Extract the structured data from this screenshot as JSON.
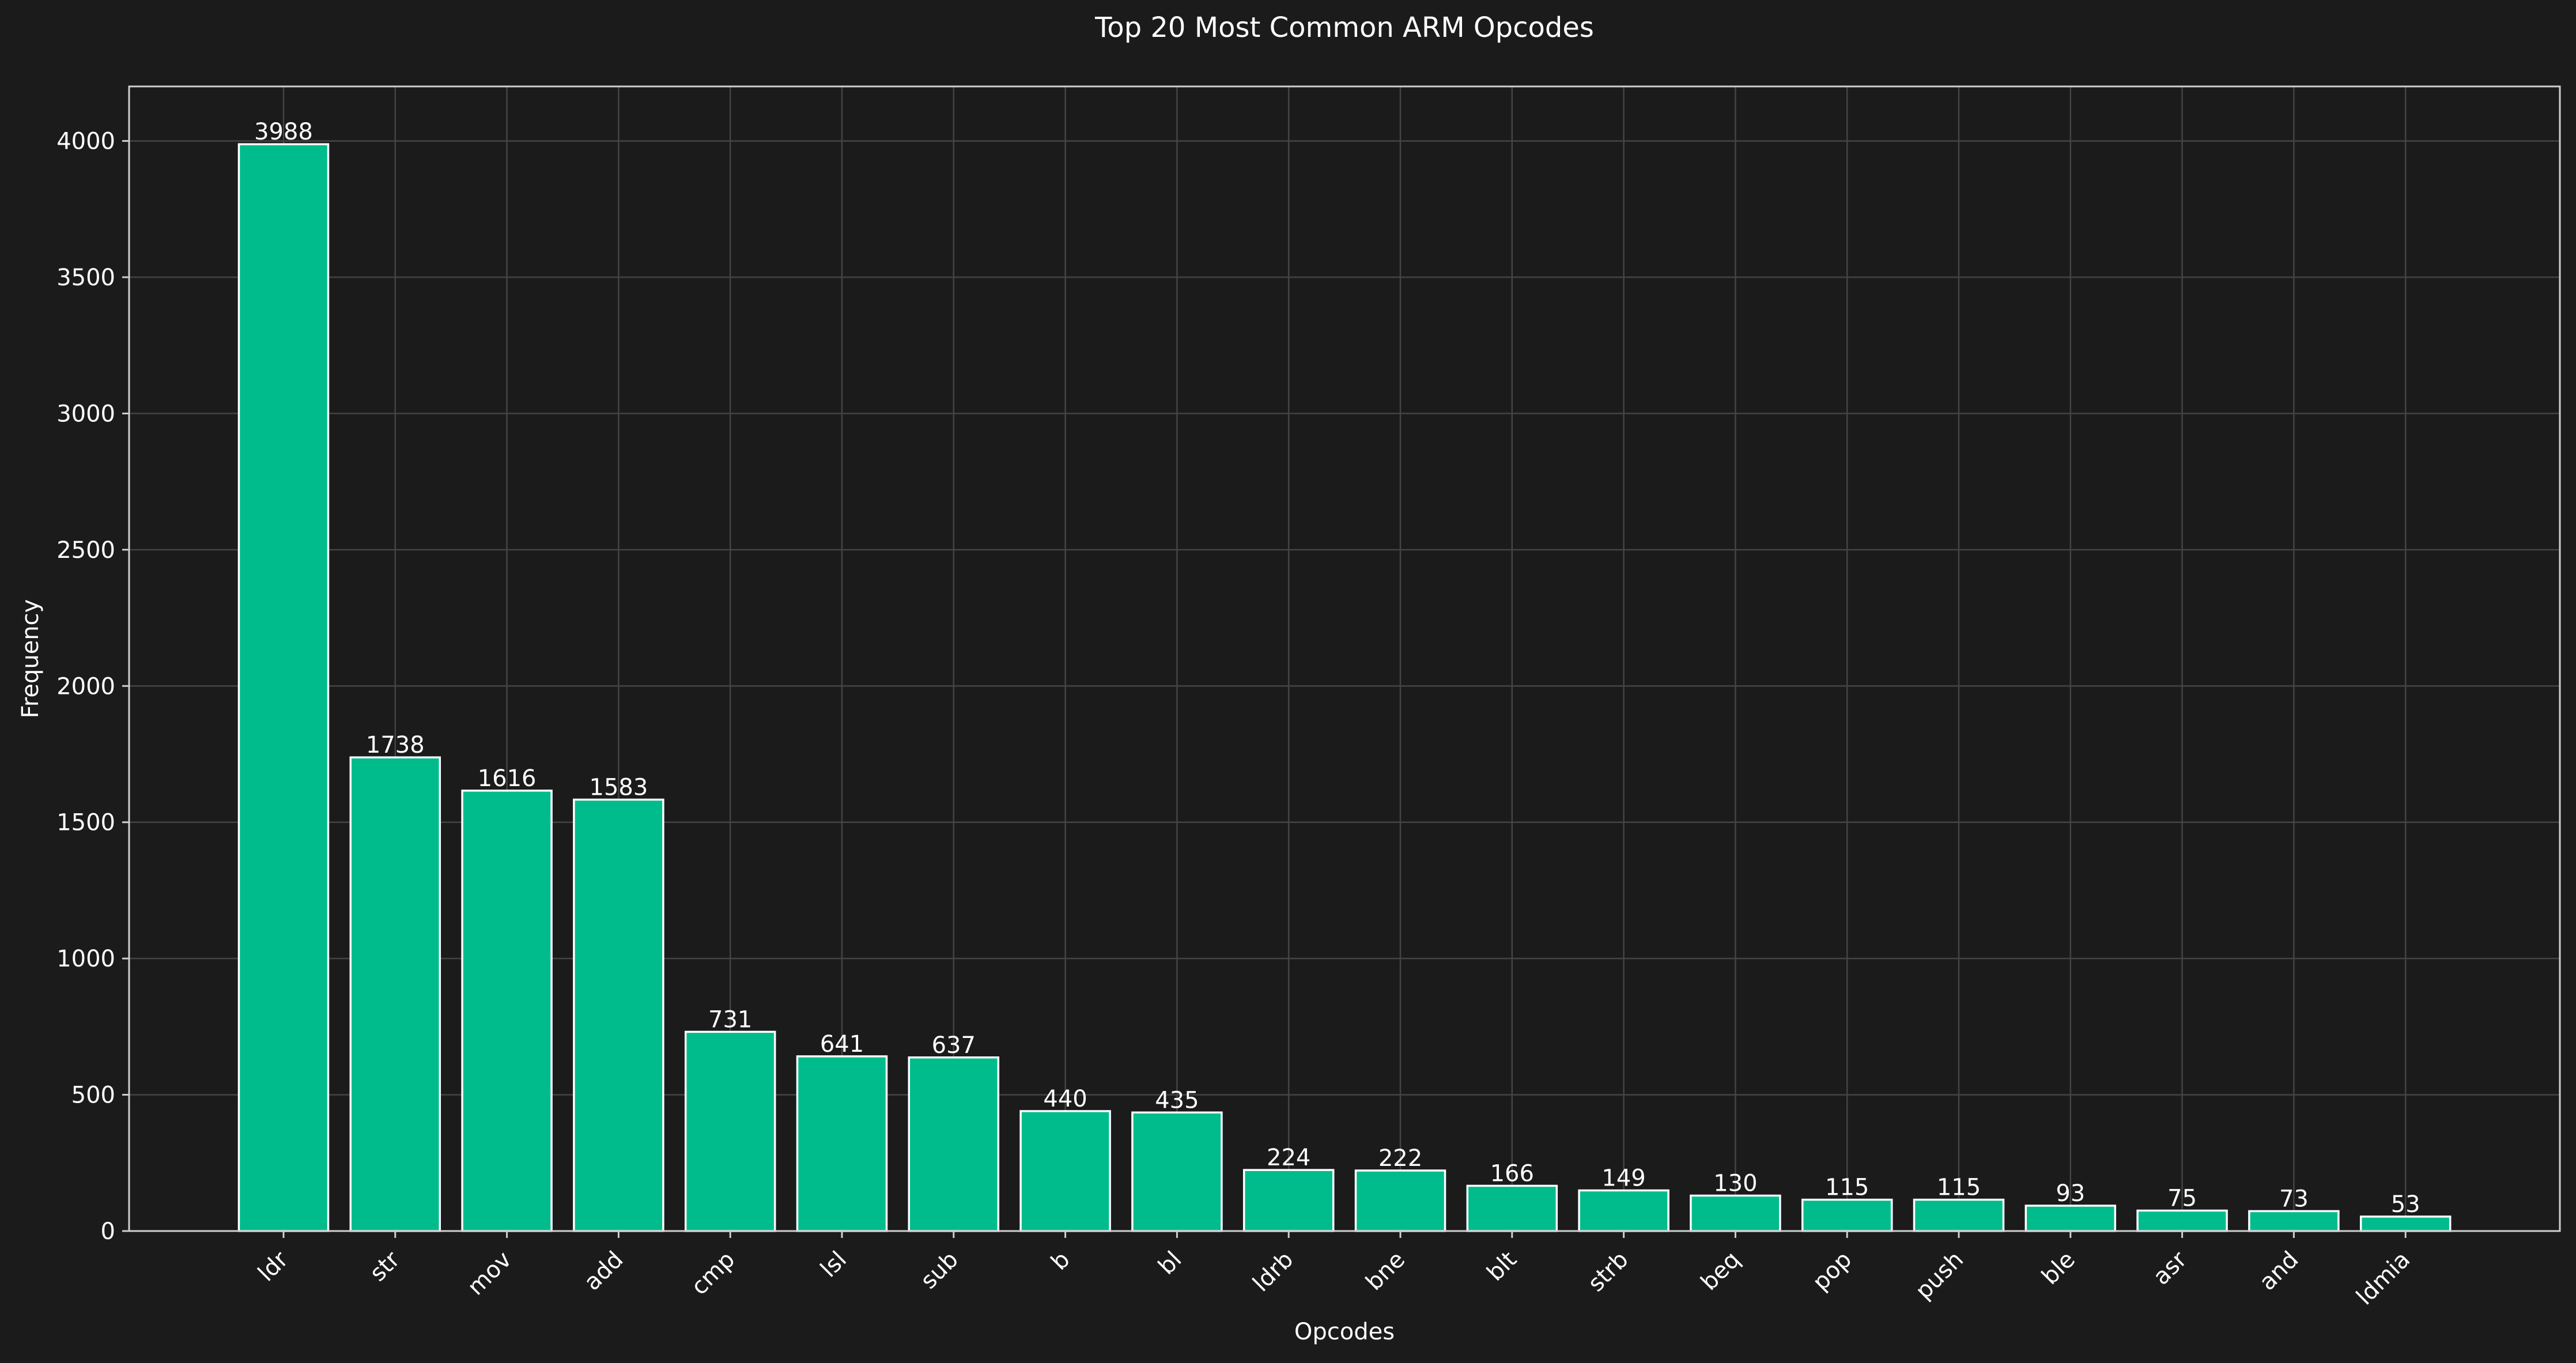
{
  "chart_data": {
    "type": "bar",
    "title": "Top 20 Most Common ARM Opcodes",
    "xlabel": "Opcodes",
    "ylabel": "Frequency",
    "categories": [
      "ldr",
      "str",
      "mov",
      "add",
      "cmp",
      "lsl",
      "sub",
      "b",
      "bl",
      "ldrb",
      "bne",
      "blt",
      "strb",
      "beq",
      "pop",
      "push",
      "ble",
      "asr",
      "and",
      "ldmia"
    ],
    "values": [
      3988,
      1738,
      1616,
      1583,
      731,
      641,
      637,
      440,
      435,
      224,
      222,
      166,
      149,
      130,
      115,
      115,
      93,
      75,
      73,
      53
    ],
    "data_labels": [
      "3988",
      "1738",
      "1616",
      "1583",
      "731",
      "641",
      "637",
      "440",
      "435",
      "224",
      "222",
      "166",
      "149",
      "130",
      "115",
      "115",
      "93",
      "75",
      "73",
      "53"
    ],
    "ylim": [
      0,
      4200
    ],
    "yticks": [
      0,
      500,
      1000,
      1500,
      2000,
      2500,
      3000,
      3500,
      4000
    ],
    "ytick_labels": [
      "0",
      "500",
      "1000",
      "1500",
      "2000",
      "2500",
      "3000",
      "3500",
      "4000"
    ],
    "grid": true,
    "bar_color": "#00bc8c",
    "background_color": "#1b1b1b"
  }
}
